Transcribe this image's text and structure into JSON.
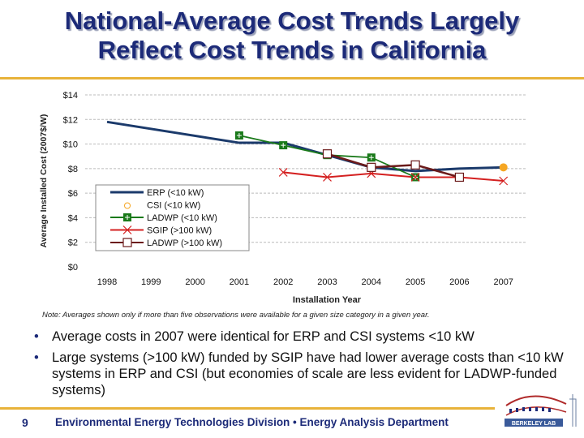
{
  "title": {
    "line1": "National-Average Cost Trends Largely",
    "line2": "Reflect Cost Trends in California"
  },
  "chart_data": {
    "type": "line",
    "xlabel": "Installation Year",
    "ylabel": "Average Installed Cost (2007$/W)",
    "categories": [
      "1998",
      "1999",
      "2000",
      "2001",
      "2002",
      "2003",
      "2004",
      "2005",
      "2006",
      "2007"
    ],
    "ylim": [
      0,
      14
    ],
    "yticks": [
      "$0",
      "$2",
      "$4",
      "$6",
      "$8",
      "$10",
      "$12",
      "$14"
    ],
    "grid": true,
    "legend_position": "lower-left",
    "series": [
      {
        "name": "ERP (<10 kW)",
        "color": "#1b3a6b",
        "marker": "none",
        "values": [
          11.8,
          null,
          null,
          10.1,
          10.1,
          9.1,
          8.1,
          7.8,
          8.0,
          8.1
        ]
      },
      {
        "name": "CSI (<10 kW)",
        "color": "#f5a623",
        "marker": "circle",
        "values": [
          null,
          null,
          null,
          null,
          null,
          null,
          null,
          null,
          null,
          8.1
        ]
      },
      {
        "name": "LADWP (<10 kW)",
        "color": "#1a7a1a",
        "marker": "square-plus",
        "values": [
          null,
          null,
          null,
          10.7,
          9.9,
          9.1,
          8.9,
          7.3,
          7.3,
          null
        ]
      },
      {
        "name": "SGIP (>100 kW)",
        "color": "#d42020",
        "marker": "x",
        "values": [
          null,
          null,
          null,
          null,
          7.7,
          7.3,
          7.6,
          7.3,
          7.3,
          7.0
        ]
      },
      {
        "name": "LADWP (>100 kW)",
        "color": "#6b1a1a",
        "marker": "open-square",
        "values": [
          null,
          null,
          null,
          null,
          null,
          9.2,
          8.1,
          8.3,
          7.3,
          null
        ]
      }
    ]
  },
  "note": "Note: Averages shown only if more than five observations were available for a given size category in a given year.",
  "bullets": [
    "Average costs in 2007 were identical for ERP and CSI systems <10 kW",
    "Large systems (>100 kW) funded by SGIP have had lower average costs than <10 kW systems in ERP and CSI (but economies of scale are less evident for LADWP-funded systems)"
  ],
  "footer": {
    "page": "9",
    "text": "Environmental Energy Technologies Division  •  Energy Analysis Department",
    "logo_text": "BERKELEY LAB"
  }
}
